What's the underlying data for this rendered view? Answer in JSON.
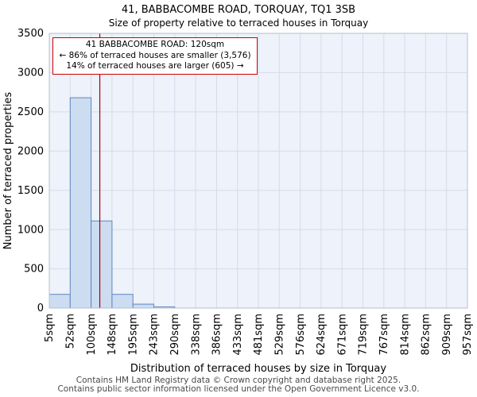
{
  "title": "41, BABBACOMBE ROAD, TORQUAY, TQ1 3SB",
  "subtitle": "Size of property relative to terraced houses in Torquay",
  "annotation": {
    "line1": "41 BABBACOMBE ROAD: 120sqm",
    "line2": "← 86% of terraced houses are smaller (3,576)",
    "line3": "14% of terraced houses are larger (605) →"
  },
  "footer": {
    "line1": "Contains HM Land Registry data © Crown copyright and database right 2025.",
    "line2": "Contains public sector information licensed under the Open Government Licence v3.0."
  },
  "chart_data": {
    "type": "bar",
    "title": "41, BABBACOMBE ROAD, TORQUAY, TQ1 3SB",
    "subtitle": "Size of property relative to terraced houses in Torquay",
    "xlabel": "Distribution of terraced houses by size in Torquay",
    "ylabel": "Number of terraced properties",
    "tick_labels": [
      "5sqm",
      "52sqm",
      "100sqm",
      "148sqm",
      "195sqm",
      "243sqm",
      "290sqm",
      "338sqm",
      "386sqm",
      "433sqm",
      "481sqm",
      "529sqm",
      "576sqm",
      "624sqm",
      "671sqm",
      "719sqm",
      "767sqm",
      "814sqm",
      "862sqm",
      "909sqm",
      "957sqm"
    ],
    "values": [
      175,
      2680,
      1110,
      175,
      50,
      15,
      0,
      0,
      0,
      0,
      0,
      0,
      0,
      0,
      0,
      0,
      0,
      0,
      0,
      0
    ],
    "ylim": [
      0,
      3500
    ],
    "yticks": [
      0,
      500,
      1000,
      1500,
      2000,
      2500,
      3000,
      3500
    ],
    "x_range_sqm": [
      5,
      957
    ],
    "marker_value_sqm": 120,
    "marker_color": "#aa0000",
    "smaller_pct": 86,
    "smaller_count": 3576,
    "larger_pct": 14,
    "larger_count": 605,
    "bar_fill": "#ccdcf1",
    "bar_stroke": "#5f87c0",
    "plot_bg": "#eef2fa",
    "grid_color": "#d4dcea",
    "frame_color": "#b6bfce",
    "grid": true,
    "legend": "none"
  }
}
